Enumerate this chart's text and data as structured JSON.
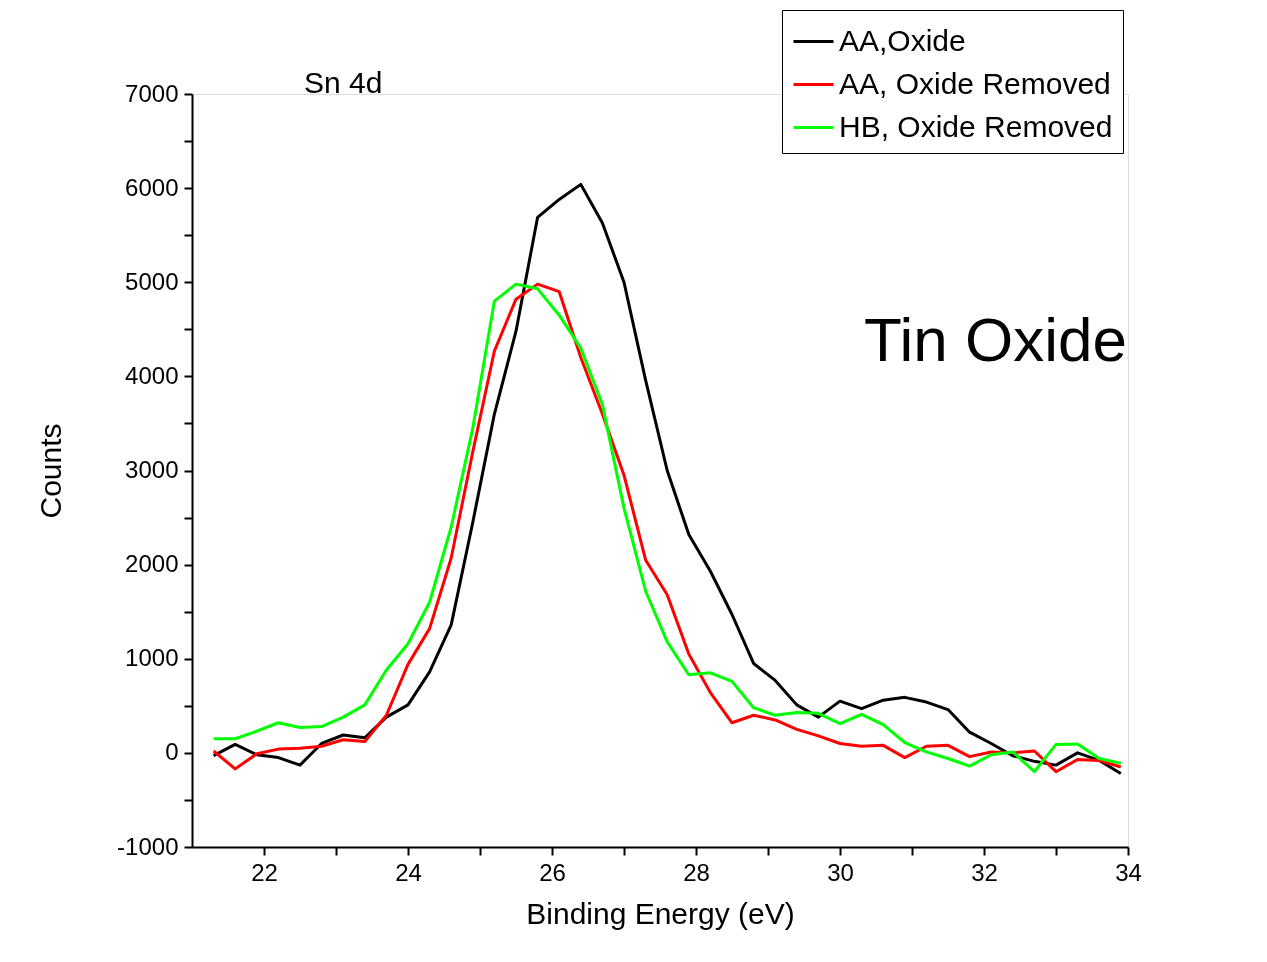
{
  "chart_data": {
    "type": "line",
    "xlabel": "Binding Energy (eV)",
    "ylabel": "Counts",
    "annotations": [
      "Sn 4d",
      "Tin Oxide"
    ],
    "x": [
      21.3,
      21.6,
      21.9,
      22.2,
      22.5,
      22.8,
      23.1,
      23.4,
      23.7,
      24.0,
      24.3,
      24.6,
      24.9,
      25.2,
      25.5,
      25.8,
      26.1,
      26.4,
      26.7,
      27.0,
      27.3,
      27.6,
      27.9,
      28.2,
      28.5,
      28.8,
      29.1,
      29.4,
      29.7,
      30.0,
      30.3,
      30.6,
      30.9,
      31.2,
      31.5,
      31.8,
      32.1,
      32.4,
      32.7,
      33.0,
      33.3,
      33.6,
      33.9
    ],
    "series": [
      {
        "name": "AA,Oxide",
        "color": "#000000",
        "values": [
          -30,
          90,
          -20,
          -50,
          -130,
          100,
          190,
          160,
          380,
          510,
          860,
          1360,
          2450,
          3600,
          4480,
          5690,
          5880,
          6040,
          5630,
          5000,
          3960,
          3000,
          2320,
          1930,
          1470,
          950,
          770,
          510,
          380,
          550,
          470,
          560,
          590,
          540,
          460,
          220,
          100,
          -30,
          -90,
          -130,
          0,
          -80,
          -220
        ]
      },
      {
        "name": "AA, Oxide Removed",
        "color": "#ff0000",
        "values": [
          20,
          -170,
          -10,
          40,
          50,
          70,
          140,
          120,
          400,
          940,
          1320,
          2070,
          3200,
          4270,
          4820,
          4980,
          4900,
          4200,
          3600,
          2950,
          2050,
          1680,
          1050,
          640,
          320,
          400,
          350,
          250,
          180,
          100,
          70,
          80,
          -50,
          70,
          80,
          -40,
          10,
          0,
          20,
          -200,
          -70,
          -80,
          -150
        ]
      },
      {
        "name": "HB, Oxide Removed",
        "color": "#00ff00",
        "values": [
          150,
          150,
          230,
          320,
          270,
          280,
          380,
          510,
          880,
          1160,
          1600,
          2400,
          3450,
          4800,
          4980,
          4930,
          4650,
          4300,
          3700,
          2600,
          1720,
          1180,
          830,
          850,
          760,
          480,
          400,
          430,
          420,
          310,
          410,
          300,
          110,
          10,
          -60,
          -140,
          -20,
          10,
          -200,
          90,
          95,
          -60,
          -110
        ]
      }
    ],
    "xlim": [
      21,
      34
    ],
    "xticks": [
      22,
      {
        "value": 23,
        "label": null
      },
      24,
      {
        "value": 25,
        "label": null
      },
      26,
      {
        "value": 27,
        "label": null
      },
      28,
      {
        "value": 29,
        "label": null
      },
      30,
      {
        "value": 31,
        "label": null
      },
      32,
      {
        "value": 33,
        "label": null
      },
      34
    ],
    "ylim": [
      -1000,
      7000
    ],
    "yticks": [
      -1000,
      {
        "value": -500,
        "label": null
      },
      0,
      {
        "value": 500,
        "label": null
      },
      1000,
      {
        "value": 1500,
        "label": null
      },
      2000,
      {
        "value": 2500,
        "label": null
      },
      3000,
      {
        "value": 3500,
        "label": null
      },
      4000,
      {
        "value": 4500,
        "label": null
      },
      5000,
      {
        "value": 5500,
        "label": null
      },
      6000,
      {
        "value": 6500,
        "label": null
      },
      7000
    ],
    "grid": false,
    "legend": "top right",
    "marker": "none",
    "line_style": "solid"
  }
}
